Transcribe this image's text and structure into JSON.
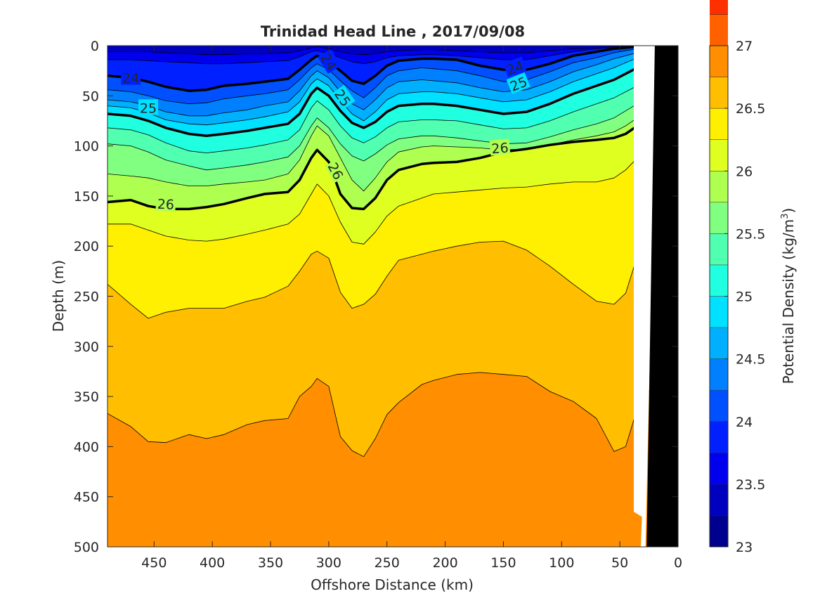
{
  "chart_data": {
    "type": "contour",
    "title": "Trinidad Head Line , 2017/09/08",
    "xlabel": "Offshore Distance (km)",
    "ylabel": "Depth (m)",
    "colorbar_label": "Potential Density (kg/m",
    "colorbar_label_sup": "3",
    "colorbar_label_end": ")",
    "xlim": [
      490,
      0
    ],
    "ylim": [
      500,
      0
    ],
    "x_ticks": [
      450,
      400,
      350,
      300,
      250,
      200,
      150,
      100,
      50,
      0
    ],
    "y_ticks": [
      0,
      50,
      100,
      150,
      200,
      250,
      300,
      350,
      400,
      450,
      500
    ],
    "colorbar_range": [
      23,
      27
    ],
    "colorbar_step": 0.25,
    "colorbar_ticks": [
      "23",
      "23.5",
      "24",
      "24.5",
      "25",
      "25.5",
      "26",
      "26.5",
      "27"
    ],
    "contour_colors": [
      "#00008f",
      "#0000bf",
      "#0000ef",
      "#0020ff",
      "#0050ff",
      "#0080ff",
      "#00b0ff",
      "#00e0ff",
      "#20ffdf",
      "#50ffaf",
      "#80ff80",
      "#afff50",
      "#dfff20",
      "#ffef00",
      "#ffbf00",
      "#ff8f00",
      "#ff6000",
      "#ff3000",
      "#ef0000",
      "#af0000"
    ],
    "x": [
      490,
      470,
      455,
      440,
      420,
      405,
      390,
      370,
      355,
      335,
      325,
      315,
      310,
      300,
      290,
      280,
      270,
      260,
      250,
      240,
      220,
      210,
      190,
      170,
      150,
      130,
      110,
      90,
      70,
      55,
      45,
      35,
      22
    ],
    "isolines": [
      {
        "level": 23.5,
        "depth": [
          6,
          6,
          6,
          7,
          8,
          9,
          9,
          8,
          8,
          7,
          5,
          2,
          1,
          3,
          6,
          8,
          9,
          8,
          6,
          5,
          4,
          4,
          5,
          6,
          7,
          7,
          5,
          3,
          2,
          1,
          1,
          1,
          1
        ]
      },
      {
        "level": 23.75,
        "depth": [
          14,
          14,
          15,
          16,
          17,
          18,
          18,
          17,
          16,
          15,
          11,
          6,
          5,
          8,
          12,
          16,
          18,
          16,
          12,
          10,
          9,
          9,
          10,
          12,
          14,
          14,
          10,
          6,
          3,
          2,
          1,
          1,
          1
        ]
      },
      {
        "level": 24,
        "depth": [
          30,
          32,
          36,
          41,
          45,
          44,
          40,
          38,
          36,
          33,
          24,
          14,
          10,
          16,
          25,
          35,
          38,
          30,
          20,
          15,
          13,
          13,
          14,
          20,
          24,
          24,
          18,
          10,
          6,
          3,
          2,
          1,
          1
        ]
      },
      {
        "level": 24.25,
        "depth": [
          44,
          46,
          50,
          55,
          58,
          57,
          53,
          50,
          48,
          44,
          34,
          22,
          18,
          24,
          35,
          45,
          52,
          42,
          30,
          25,
          22,
          23,
          25,
          30,
          36,
          34,
          26,
          17,
          12,
          7,
          5,
          3,
          2
        ]
      },
      {
        "level": 24.5,
        "depth": [
          54,
          56,
          60,
          66,
          70,
          70,
          67,
          64,
          60,
          56,
          45,
          30,
          25,
          32,
          46,
          58,
          64,
          54,
          42,
          36,
          34,
          35,
          37,
          42,
          46,
          44,
          36,
          26,
          19,
          13,
          10,
          7,
          4
        ]
      },
      {
        "level": 24.75,
        "depth": [
          60,
          62,
          67,
          74,
          78,
          79,
          77,
          74,
          71,
          66,
          56,
          38,
          33,
          40,
          55,
          68,
          75,
          66,
          54,
          48,
          46,
          46,
          48,
          52,
          56,
          54,
          46,
          36,
          28,
          22,
          17,
          12,
          8
        ]
      },
      {
        "level": 25,
        "depth": [
          68,
          70,
          75,
          82,
          88,
          90,
          88,
          85,
          82,
          78,
          68,
          48,
          42,
          50,
          65,
          77,
          82,
          76,
          66,
          60,
          58,
          58,
          60,
          64,
          68,
          66,
          58,
          48,
          40,
          34,
          28,
          22,
          17
        ]
      },
      {
        "level": 25.25,
        "depth": [
          82,
          84,
          89,
          97,
          105,
          107,
          105,
          102,
          99,
          94,
          84,
          62,
          55,
          64,
          80,
          92,
          97,
          91,
          82,
          76,
          74,
          74,
          75,
          79,
          83,
          82,
          75,
          66,
          58,
          52,
          46,
          40,
          32
        ]
      },
      {
        "level": 25.5,
        "depth": [
          98,
          100,
          106,
          114,
          120,
          124,
          122,
          119,
          116,
          111,
          100,
          80,
          72,
          82,
          98,
          110,
          115,
          108,
          99,
          93,
          90,
          90,
          92,
          95,
          98,
          97,
          91,
          84,
          78,
          72,
          65,
          58,
          50
        ]
      },
      {
        "level": 25.75,
        "depth": [
          128,
          130,
          132,
          136,
          140,
          140,
          138,
          136,
          134,
          128,
          114,
          90,
          80,
          90,
          112,
          134,
          145,
          132,
          116,
          106,
          101,
          100,
          101,
          102,
          104,
          103,
          99,
          94,
          90,
          86,
          80,
          72,
          62
        ]
      },
      {
        "level": 26,
        "depth": [
          156,
          154,
          160,
          163,
          163,
          161,
          158,
          152,
          148,
          146,
          134,
          112,
          104,
          116,
          148,
          162,
          163,
          152,
          134,
          124,
          118,
          117,
          116,
          112,
          106,
          103,
          99,
          96,
          94,
          92,
          88,
          80,
          70
        ]
      },
      {
        "level": 26.25,
        "depth": [
          178,
          178,
          184,
          190,
          194,
          195,
          193,
          188,
          184,
          178,
          168,
          148,
          138,
          150,
          176,
          196,
          198,
          186,
          170,
          160,
          152,
          148,
          146,
          144,
          142,
          141,
          138,
          136,
          136,
          132,
          124,
          112,
          100
        ]
      },
      {
        "level": 26.5,
        "depth": [
          238,
          258,
          272,
          266,
          262,
          262,
          262,
          255,
          251,
          240,
          225,
          208,
          205,
          212,
          246,
          262,
          258,
          248,
          230,
          214,
          208,
          205,
          200,
          196,
          195,
          204,
          220,
          238,
          255,
          258,
          247,
          210,
          175
        ]
      },
      {
        "level": 26.75,
        "depth": [
          367,
          380,
          395,
          396,
          388,
          392,
          388,
          378,
          374,
          372,
          350,
          340,
          332,
          340,
          390,
          404,
          410,
          392,
          368,
          356,
          338,
          334,
          328,
          326,
          328,
          330,
          345,
          355,
          372,
          405,
          400,
          362,
          340
        ]
      }
    ],
    "labels": [
      {
        "text": "24",
        "x": 470,
        "depth": 32,
        "angle": 0
      },
      {
        "text": "24",
        "x": 300,
        "depth": 16,
        "angle": 58
      },
      {
        "text": "24",
        "x": 140,
        "depth": 22,
        "angle": -18
      },
      {
        "text": "25",
        "x": 455,
        "depth": 62,
        "angle": 0
      },
      {
        "text": "25",
        "x": 288,
        "depth": 52,
        "angle": 55
      },
      {
        "text": "25",
        "x": 137,
        "depth": 38,
        "angle": -22
      },
      {
        "text": "26",
        "x": 294,
        "depth": 125,
        "angle": 62
      },
      {
        "text": "26",
        "x": 440,
        "depth": 158,
        "angle": 3
      },
      {
        "text": "26",
        "x": 153,
        "depth": 102,
        "angle": -5
      }
    ],
    "land": {
      "x": [
        20,
        0,
        0,
        27
      ],
      "depth": [
        0,
        0,
        500,
        500
      ]
    },
    "no_data": {
      "x": [
        38,
        18,
        28,
        32,
        31,
        38
      ],
      "depth": [
        0,
        0,
        500,
        500,
        470,
        465
      ]
    }
  }
}
